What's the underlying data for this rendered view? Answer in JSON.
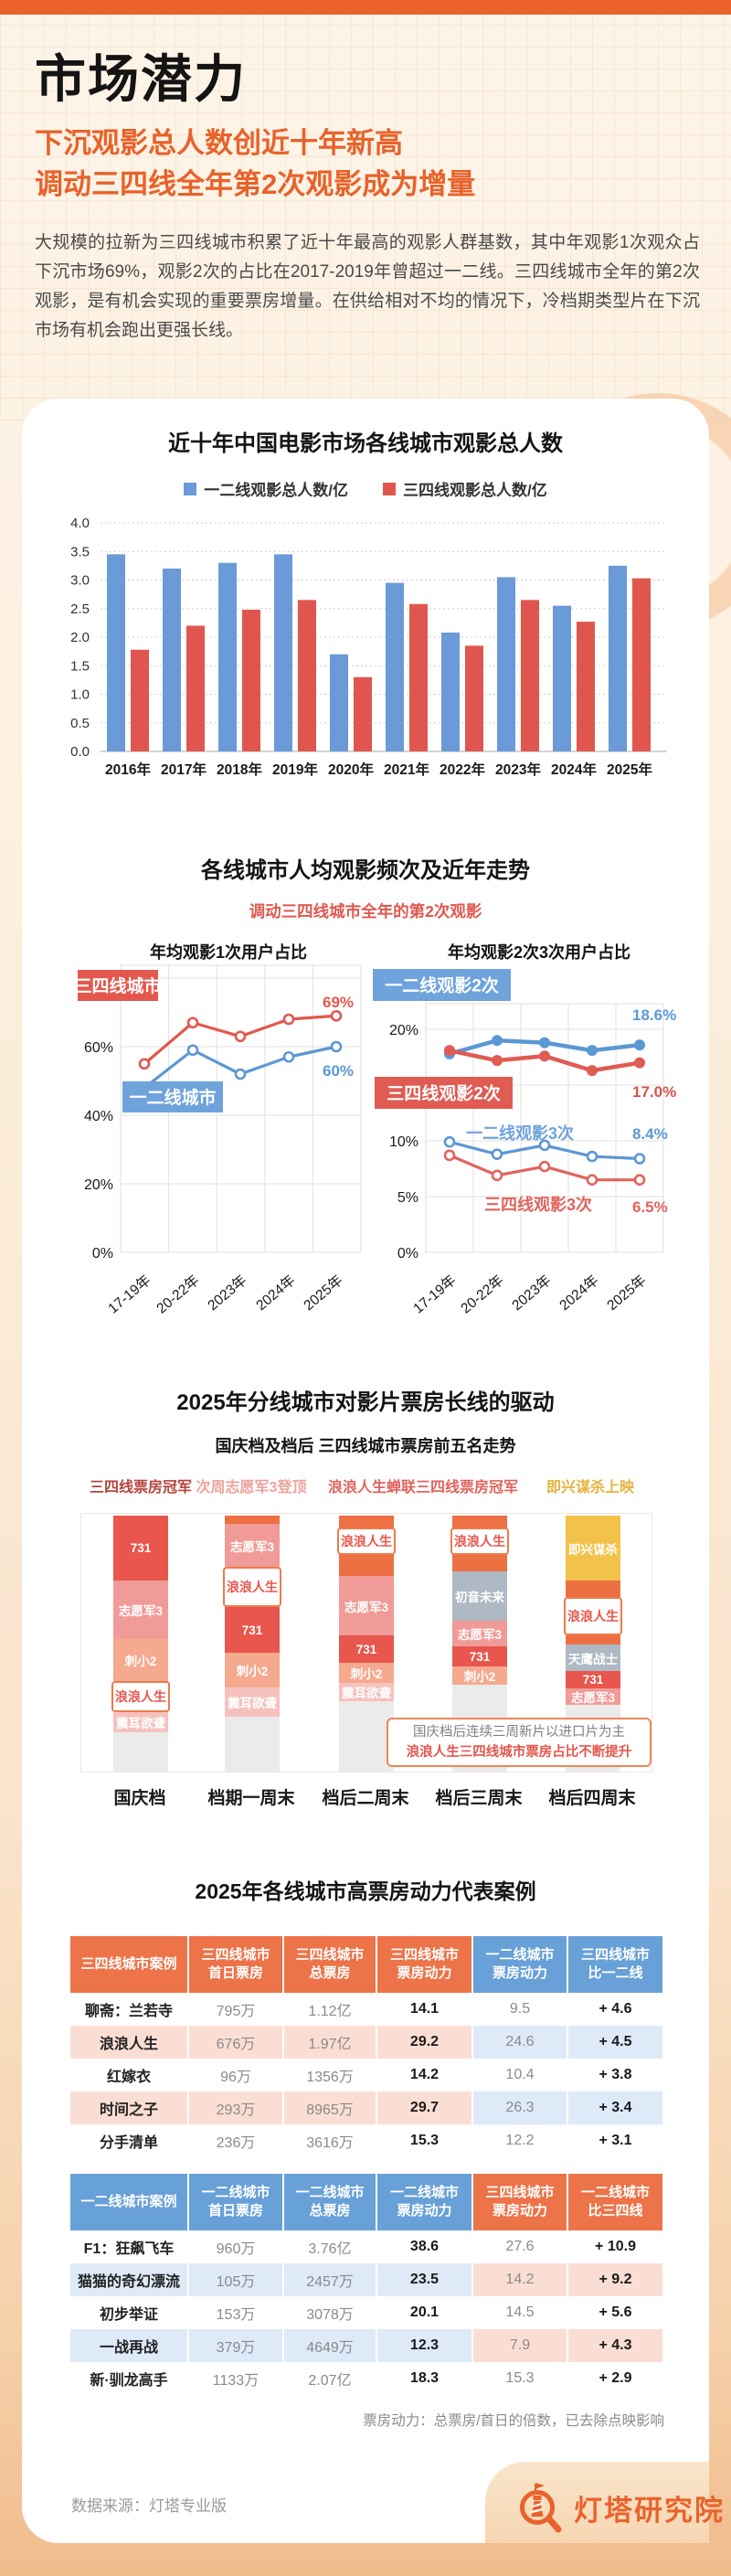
{
  "header": {
    "title": "市场潜力",
    "subtitle_line1": "下沉观影总人数创近十年新高",
    "subtitle_line2": "调动三四线全年第2次观影成为增量",
    "intro": "大规模的拉新为三四线城市积累了近十年最高的观影人群基数，其中年观影1次观众占下沉市场69%，观影2次的占比在2017-2019年曾超过一二线。三四线城市全年的第2次观影，是有机会实现的重要票房增量。在供给相对不均的情况下，冷档期类型片在下沉市场有机会跑出更强长线。"
  },
  "colors": {
    "accent_orange": "#E8622A",
    "bar_blue": "#6A9AD8",
    "bar_red": "#E0564E",
    "line_blue": "#5B97D5",
    "line_red": "#D9534A",
    "box_blue": "#6FA3DC",
    "box_red": "#E4574D",
    "table_orange": "#ED7348",
    "table_blue": "#68A0D8"
  },
  "sections": {
    "frequency": {
      "title": "各线城市人均观影频次及近年走势",
      "subtitle": "调动三四线城市全年的第2次观影"
    },
    "cases": {
      "title": "2025年各线城市高票房动力代表案例"
    }
  },
  "chart_data": [
    {
      "type": "bar",
      "title": "近十年中国电影市场各线城市观影总人数",
      "categories": [
        "2016年",
        "2017年",
        "2018年",
        "2019年",
        "2020年",
        "2021年",
        "2022年",
        "2023年",
        "2024年",
        "2025年"
      ],
      "series": [
        {
          "name": "一二线观影总人数/亿",
          "color": "#6A9AD8",
          "values": [
            3.45,
            3.2,
            3.3,
            3.45,
            1.7,
            2.95,
            2.08,
            3.05,
            2.55,
            3.25
          ]
        },
        {
          "name": "三四线观影总人数/亿",
          "color": "#E0564E",
          "values": [
            1.78,
            2.2,
            2.48,
            2.65,
            1.3,
            2.58,
            1.85,
            2.65,
            2.27,
            3.03
          ]
        }
      ],
      "ylim": [
        0,
        4.0
      ],
      "ytick_step": 0.5,
      "grid": "dotted",
      "legend_position": "top"
    },
    {
      "type": "line",
      "title": "年均观影1次用户占比",
      "x": [
        "17-19年",
        "20-22年",
        "2023年",
        "2024年",
        "2025年"
      ],
      "yticks_percent": [
        0,
        20,
        40,
        60,
        80
      ],
      "series": [
        {
          "name": "三四线城市",
          "color": "#E4574D",
          "marker": "open",
          "values": [
            55,
            67,
            63,
            68,
            69
          ],
          "end_label": "69%"
        },
        {
          "name": "一二线城市",
          "color": "#5B97D5",
          "marker": "open",
          "values": [
            48,
            59,
            52,
            57,
            60
          ],
          "end_label": "60%"
        }
      ]
    },
    {
      "type": "line",
      "title": "年均观影2次3次用户占比",
      "x": [
        "17-19年",
        "20-22年",
        "2023年",
        "2024年",
        "2025年"
      ],
      "yticks_percent": [
        0,
        5,
        10,
        15,
        20
      ],
      "series": [
        {
          "name": "一二线观影2次",
          "color": "#5B97D5",
          "marker": "solid",
          "values": [
            17.8,
            19.0,
            18.8,
            18.1,
            18.6
          ],
          "end_label": "18.6%"
        },
        {
          "name": "三四线观影2次",
          "color": "#E05B52",
          "marker": "solid",
          "values": [
            18.1,
            17.2,
            17.6,
            16.3,
            17.0
          ],
          "end_label": "17.0%"
        },
        {
          "name": "一二线观影3次",
          "color": "#5B97D5",
          "marker": "open",
          "values": [
            9.9,
            8.8,
            9.6,
            8.6,
            8.4
          ],
          "end_label": "8.4%"
        },
        {
          "name": "三四线观影3次",
          "color": "#E0645C",
          "marker": "open",
          "values": [
            8.7,
            6.9,
            7.7,
            6.5,
            6.5
          ],
          "end_label": "6.5%"
        }
      ]
    },
    {
      "type": "stacked_bar",
      "title": "2025年分线城市对影片票房长线的驱动",
      "subtitle": "国庆档及档后 三四线城市票房前五名走势",
      "annotations": [
        {
          "text": "三四线票房冠军",
          "color": "#B5453E",
          "cx": 154
        },
        {
          "text": "次周志愿军3登顶",
          "color": "#EDA39D",
          "cx": 275
        },
        {
          "text": "浪浪人生蝉联三四线票房冠军",
          "color": "#E0645C",
          "cx": 463
        },
        {
          "text": "即兴谋杀上映",
          "color": "#E7B23E",
          "cx": 646
        }
      ],
      "note_line1": "国庆档后连续三周新片以进口片为主",
      "note_line2": "浪浪人生三四线城市票房占比不断提升",
      "categories": [
        "国庆档",
        "档期一周末",
        "档后二周末",
        "档后三周末",
        "档后四周末"
      ],
      "columns": [
        {
          "category": "国庆档",
          "segments": [
            {
              "label": "731",
              "color": "#E8564D",
              "h": 71
            },
            {
              "label": "志愿军3",
              "color": "#F09B97",
              "h": 64
            },
            {
              "label": "刺小2",
              "color": "#F5A98E",
              "h": 46
            },
            {
              "label": "浪浪人生",
              "style": "highlight",
              "h": 34
            },
            {
              "label": "震耳欲聋",
              "color": "#F6C1BD",
              "h": 22
            },
            {
              "label": "",
              "color": "#EBEBEB",
              "h": 43
            }
          ]
        },
        {
          "category": "档期一周末",
          "segments": [
            {
              "label": "",
              "color": "#ED7043",
              "h": 9
            },
            {
              "label": "志愿军3",
              "color": "#F09B97",
              "h": 47
            },
            {
              "label": "浪浪人生",
              "style": "highlight",
              "h": 44
            },
            {
              "label": "731",
              "color": "#E8564D",
              "h": 50
            },
            {
              "label": "刺小2",
              "color": "#F5A98E",
              "h": 38
            },
            {
              "label": "震耳欲聋",
              "color": "#F6C1BD",
              "h": 32
            },
            {
              "label": "",
              "color": "#EBEBEB",
              "h": 60
            }
          ]
        },
        {
          "category": "档后二周末",
          "segments": [
            {
              "label": "浪浪人生",
              "style": "box_on_orange",
              "color": "#ED7043",
              "h": 66
            },
            {
              "label": "志愿军3",
              "color": "#F09B97",
              "h": 65
            },
            {
              "label": "731",
              "color": "#E8564D",
              "h": 30
            },
            {
              "label": "刺小2",
              "color": "#F5A98E",
              "h": 22
            },
            {
              "label": "震耳欲聋",
              "color": "#F6C1BD",
              "h": 20
            },
            {
              "label": "",
              "color": "#EBEBEB",
              "h": 77
            }
          ]
        },
        {
          "category": "档后三周末",
          "segments": [
            {
              "label": "浪浪人生",
              "style": "box_on_orange",
              "color": "#ED7043",
              "h": 61
            },
            {
              "label": "初音未来",
              "color": "#AEB9C4",
              "h": 54
            },
            {
              "label": "志愿军3",
              "color": "#F09B97",
              "h": 28
            },
            {
              "label": "731",
              "color": "#E8564D",
              "h": 22
            },
            {
              "label": "刺小2",
              "color": "#F5A98E",
              "h": 20
            },
            {
              "label": "",
              "color": "#EBEBEB",
              "h": 95
            }
          ]
        },
        {
          "category": "档后四周末",
          "segments": [
            {
              "label": "即兴谋杀",
              "color": "#F2C24A",
              "h": 71
            },
            {
              "label": "",
              "color": "#ED7043",
              "h": 18
            },
            {
              "label": "浪浪人生",
              "style": "highlight",
              "h": 42
            },
            {
              "label": "",
              "color": "#ED7043",
              "h": 10
            },
            {
              "label": "天鹰战士",
              "color": "#AEB9C4",
              "h": 29
            },
            {
              "label": "731",
              "color": "#E8564D",
              "h": 19
            },
            {
              "label": "志愿军3",
              "color": "#F09B97",
              "h": 18
            },
            {
              "label": "",
              "color": "#EBEBEB",
              "h": 73
            }
          ]
        }
      ]
    }
  ],
  "tables": [
    {
      "header": [
        "三四线城市案例",
        "三四线城市\n首日票房",
        "三四线城市\n总票房",
        "三四线城市\n票房动力",
        "一二线城市\n票房动力",
        "三四线城市\n比一二线"
      ],
      "header_colors": [
        "o",
        "o",
        "o",
        "o",
        "b",
        "b"
      ],
      "rows": [
        [
          "聊斋：兰若寺",
          "795万",
          "1.12亿",
          "14.1",
          "9.5",
          "+ 4.6"
        ],
        [
          "浪浪人生",
          "676万",
          "1.97亿",
          "29.2",
          "24.6",
          "+ 4.5"
        ],
        [
          "红嫁衣",
          "96万",
          "1356万",
          "14.2",
          "10.4",
          "+ 3.8"
        ],
        [
          "时间之子",
          "293万",
          "8965万",
          "29.7",
          "26.3",
          "+ 3.4"
        ],
        [
          "分手清单",
          "236万",
          "3616万",
          "15.3",
          "12.2",
          "+ 3.1"
        ]
      ],
      "highlight_rows": [
        1,
        3
      ]
    },
    {
      "header": [
        "一二线城市案例",
        "一二线城市\n首日票房",
        "一二线城市\n总票房",
        "一二线城市\n票房动力",
        "三四线城市\n票房动力",
        "一二线城市\n比三四线"
      ],
      "header_colors": [
        "b",
        "b",
        "b",
        "b",
        "o",
        "o"
      ],
      "rows": [
        [
          "F1：狂飙飞车",
          "960万",
          "3.76亿",
          "38.6",
          "27.6",
          "+ 10.9"
        ],
        [
          "猫猫的奇幻漂流",
          "105万",
          "2457万",
          "23.5",
          "14.2",
          "+ 9.2"
        ],
        [
          "初步举证",
          "153万",
          "3078万",
          "20.1",
          "14.5",
          "+ 5.6"
        ],
        [
          "一战再战",
          "379万",
          "4649万",
          "12.3",
          "7.9",
          "+ 4.3"
        ],
        [
          "新·驯龙高手",
          "1133万",
          "2.07亿",
          "18.3",
          "15.3",
          "+ 2.9"
        ]
      ],
      "highlight_rows": [
        1,
        3
      ]
    }
  ],
  "footnote": "票房动力：总票房/首日的倍数，已去除点映影响",
  "footer": {
    "source": "数据来源：灯塔专业版",
    "brand": "灯塔研究院"
  }
}
